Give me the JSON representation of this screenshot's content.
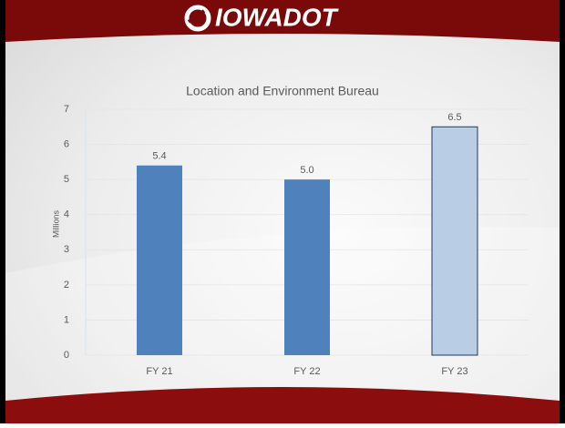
{
  "header": {
    "logo": "IOWADOT"
  },
  "chart_data": {
    "type": "bar",
    "title": "Location and Environment Bureau",
    "y_label": "Millions",
    "categories": [
      "FY 21",
      "FY 22",
      "FY 23"
    ],
    "values": [
      5.4,
      5.0,
      6.5
    ],
    "value_labels": [
      "5.4",
      "5.0",
      "6.5"
    ],
    "colors": [
      "#4f81bd",
      "#4f81bd",
      "#b9cde5"
    ],
    "ylim": [
      0,
      7
    ],
    "yticks": [
      0,
      1,
      2,
      3,
      4,
      5,
      6,
      7
    ],
    "grid": true
  }
}
